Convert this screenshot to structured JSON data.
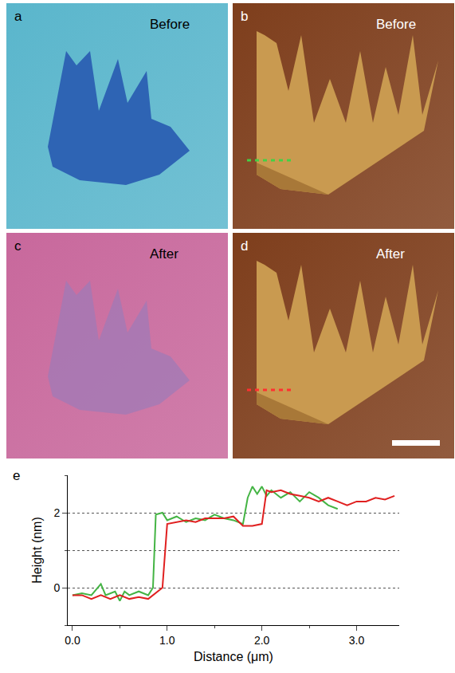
{
  "panels": [
    {
      "letter": "a",
      "label": "Before"
    },
    {
      "letter": "b",
      "label": "Before"
    },
    {
      "letter": "c",
      "label": "After"
    },
    {
      "letter": "d",
      "label": "After"
    }
  ],
  "chart_data": {
    "type": "line",
    "letter": "e",
    "x_label": "Distance (μm)",
    "y_label": "Height (nm)",
    "xlim": [
      -0.05,
      3.45
    ],
    "ylim": [
      -1,
      3
    ],
    "xticks": [
      {
        "value": 0,
        "label": "0.0"
      },
      {
        "value": 1,
        "label": "1.0"
      },
      {
        "value": 2,
        "label": "2.0"
      },
      {
        "value": 3,
        "label": "3.0"
      }
    ],
    "yticks": [
      0,
      2
    ],
    "grid": true,
    "series": [
      {
        "color": "#44b444",
        "x": [
          0.0,
          0.1,
          0.2,
          0.3,
          0.35,
          0.45,
          0.5,
          0.55,
          0.6,
          0.7,
          0.8,
          0.85,
          0.88,
          0.95,
          1.0,
          1.1,
          1.2,
          1.3,
          1.4,
          1.5,
          1.6,
          1.7,
          1.8,
          1.85,
          1.9,
          1.95,
          2.0,
          2.05,
          2.1,
          2.2,
          2.3,
          2.4,
          2.5,
          2.6,
          2.7,
          2.8
        ],
        "values": [
          -0.2,
          -0.15,
          -0.2,
          0.1,
          -0.2,
          -0.1,
          -0.35,
          -0.1,
          -0.2,
          -0.1,
          -0.2,
          0.0,
          1.95,
          2.0,
          1.8,
          1.9,
          1.75,
          1.85,
          1.8,
          1.95,
          1.85,
          1.8,
          1.7,
          2.4,
          2.7,
          2.5,
          2.7,
          2.45,
          2.6,
          2.4,
          2.55,
          2.3,
          2.55,
          2.4,
          2.2,
          2.1
        ]
      },
      {
        "color": "#e02020",
        "x": [
          0.0,
          0.1,
          0.2,
          0.3,
          0.4,
          0.5,
          0.6,
          0.7,
          0.8,
          0.9,
          0.95,
          1.0,
          1.1,
          1.2,
          1.3,
          1.4,
          1.5,
          1.6,
          1.7,
          1.8,
          1.9,
          2.0,
          2.05,
          2.1,
          2.2,
          2.3,
          2.4,
          2.5,
          2.6,
          2.7,
          2.8,
          2.9,
          3.0,
          3.1,
          3.2,
          3.3,
          3.4
        ],
        "values": [
          -0.2,
          -0.2,
          -0.3,
          -0.2,
          -0.3,
          -0.2,
          -0.3,
          -0.25,
          -0.3,
          -0.1,
          0.0,
          1.7,
          1.75,
          1.8,
          1.75,
          1.85,
          1.85,
          1.85,
          1.9,
          1.65,
          1.65,
          1.7,
          2.6,
          2.55,
          2.6,
          2.5,
          2.45,
          2.4,
          2.3,
          2.4,
          2.3,
          2.2,
          2.3,
          2.3,
          2.4,
          2.35,
          2.45
        ]
      }
    ]
  }
}
